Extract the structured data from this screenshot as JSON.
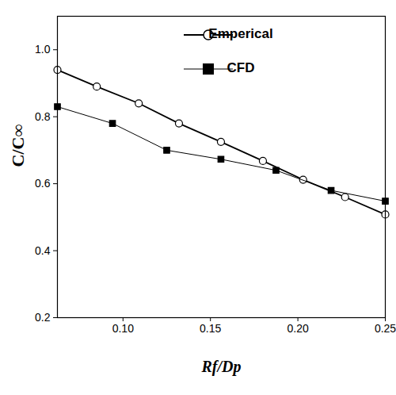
{
  "chart_data": {
    "type": "line",
    "x_label": "Rf/Dp",
    "y_label": "C/C∞",
    "xlim": [
      0.0625,
      0.25
    ],
    "xticks": [
      {
        "value": 0.1,
        "label": "0.10"
      },
      0.15,
      {
        "value": 0.2,
        "label": "0.20"
      },
      0.25
    ],
    "ylim": [
      0.2,
      1.1
    ],
    "yticks": [
      0.2,
      0.4,
      0.6,
      0.8,
      {
        "value": 1.0,
        "label": "1.0"
      }
    ],
    "grid": false,
    "legend": "top-right",
    "series": [
      {
        "name": "Emperical",
        "color": "#000000",
        "marker": "circle",
        "line_style": "solid",
        "x": [
          0.0625,
          0.085,
          0.109,
          0.132,
          0.156,
          0.18,
          0.203,
          0.227,
          0.25
        ],
        "values": [
          0.94,
          0.89,
          0.84,
          0.78,
          0.725,
          0.668,
          0.612,
          0.56,
          0.508
        ]
      },
      {
        "name": "CFD",
        "color": "#000000",
        "marker": "square",
        "line_style": "solid",
        "x": [
          0.0625,
          0.094,
          0.125,
          0.156,
          0.1875,
          0.219,
          0.25
        ],
        "values": [
          0.83,
          0.78,
          0.7,
          0.673,
          0.64,
          0.58,
          0.548
        ]
      }
    ]
  }
}
